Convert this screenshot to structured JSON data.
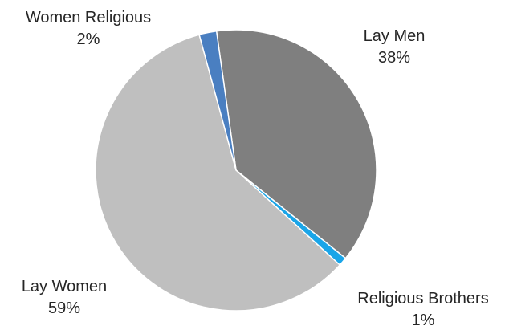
{
  "chart_data": {
    "type": "pie",
    "title": "",
    "categories": [
      "Lay Men",
      "Religious Brothers",
      "Lay Women",
      "Women Religious"
    ],
    "values": [
      38,
      1,
      59,
      2
    ],
    "value_labels": [
      "38%",
      "1%",
      "59%",
      "2%"
    ],
    "colors": [
      "#7f7f7f",
      "#1aa5e8",
      "#bfbfbf",
      "#4a7fc1"
    ],
    "legend": "none"
  }
}
